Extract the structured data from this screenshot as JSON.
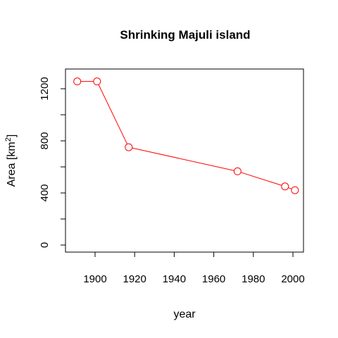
{
  "chart_data": {
    "type": "line",
    "title": "Shrinking Majuli island",
    "xlabel": "year",
    "ylabel": "Area [km",
    "ylabel_sup": "2",
    "ylabel_suffix": "]",
    "x": [
      1891,
      1901,
      1917,
      1972,
      1996,
      2001
    ],
    "series": [
      {
        "values": [
          1256,
          1256,
          751,
          566,
          450,
          421
        ],
        "color": "#ff0000",
        "marker": "open-circle"
      }
    ],
    "xlim": [
      1888,
      2005
    ],
    "ylim": [
      0,
      1350
    ],
    "xticks": [
      "1900",
      "1920",
      "1940",
      "1960",
      "1980",
      "2000"
    ],
    "yticks": [
      "0",
      "400",
      "800",
      "1200"
    ],
    "ytick_minor": [
      200,
      600,
      1000
    ],
    "grid": false,
    "legend": "none"
  }
}
